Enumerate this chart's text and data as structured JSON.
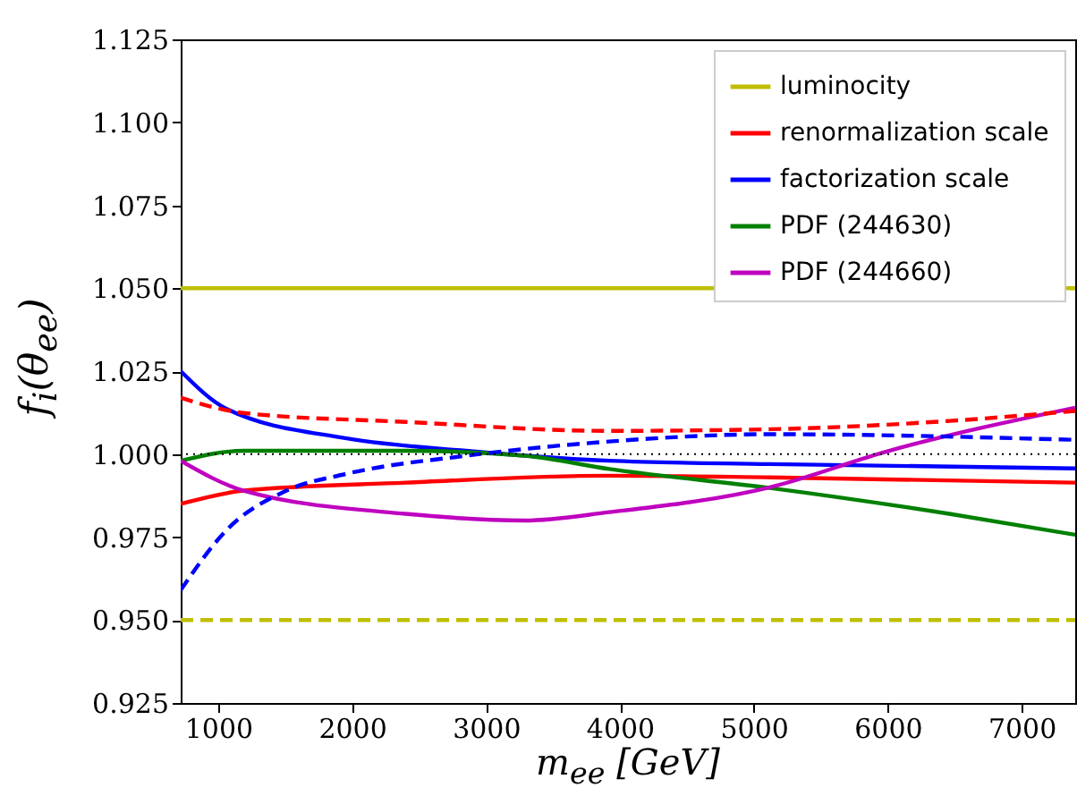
{
  "chart_data": {
    "type": "line",
    "xlabel": "m$_{ee}$ [GeV]",
    "ylabel": "f$_{i}$(θ$_{ee}$)",
    "xlim": [
      720,
      7400
    ],
    "ylim": [
      0.925,
      1.125
    ],
    "xticks": [
      1000,
      2000,
      3000,
      4000,
      5000,
      6000,
      7000
    ],
    "yticks": [
      {
        "value": 0.925,
        "label": "0.925"
      },
      {
        "value": 0.95,
        "label": "0.950"
      },
      {
        "value": 0.975,
        "label": "0.975"
      },
      {
        "value": 1,
        "label": "1.000"
      },
      {
        "value": 1.025,
        "label": "1.025"
      },
      {
        "value": 1.05,
        "label": "1.050"
      },
      {
        "value": 1.075,
        "label": "1.075"
      },
      {
        "value": 1.1,
        "label": "1.100"
      },
      {
        "value": 1.125,
        "label": "1.125"
      }
    ],
    "legend": "top right",
    "grid": false,
    "series": [
      {
        "name": "luminocity",
        "color": "#bfbf00",
        "line_style": "solid",
        "x": [
          720,
          7400
        ],
        "values": [
          1.05,
          1.05
        ]
      },
      {
        "name": "renormalization scale",
        "color": "#ff0000",
        "line_style": "solid",
        "x": [
          720,
          1190,
          2400,
          3920,
          5120,
          7400
        ],
        "values": [
          0.985,
          0.989,
          0.9914,
          0.9935,
          0.993,
          0.9914
        ]
      },
      {
        "name": "factorization scale",
        "color": "#0000ff",
        "line_style": "solid",
        "x": [
          720,
          1060,
          1950,
          2850,
          3920,
          5120,
          7400
        ],
        "values": [
          1.025,
          1.0137,
          1.0048,
          1.001,
          0.998,
          0.997,
          0.9957
        ]
      },
      {
        "name": "PDF (244630)",
        "color": "#008000",
        "line_style": "solid",
        "x": [
          720,
          1190,
          2400,
          3290,
          3920,
          5120,
          6460,
          7400
        ],
        "values": [
          0.998,
          1.001,
          1.001,
          0.9995,
          0.9955,
          0.9898,
          0.982,
          0.9757
        ]
      },
      {
        "name": "PDF (244660)",
        "color": "#bf00bf",
        "line_style": "solid",
        "x": [
          720,
          1190,
          2400,
          3290,
          3920,
          5120,
          6010,
          7400
        ],
        "values": [
          0.998,
          0.989,
          0.982,
          0.98,
          0.9825,
          0.99,
          1.001,
          1.014
        ]
      },
      {
        "color": "#bfbf00",
        "line_style": "dashed",
        "x": [
          720,
          7400
        ],
        "values": [
          0.95,
          0.95
        ]
      },
      {
        "color": "#ff0000",
        "line_style": "dashed",
        "x": [
          720,
          1190,
          2400,
          3920,
          5120,
          6460,
          7400
        ],
        "values": [
          1.017,
          1.0124,
          1.0097,
          1.007,
          1.0075,
          1.01,
          1.013
        ]
      },
      {
        "color": "#0000ff",
        "line_style": "dashed",
        "x": [
          720,
          1060,
          1510,
          1950,
          2850,
          3920,
          5120,
          7400
        ],
        "values": [
          0.959,
          0.977,
          0.989,
          0.994,
          0.9995,
          1.0038,
          1.006,
          1.0043
        ]
      }
    ],
    "ref_lines": [
      {
        "axis": "y",
        "value": 1,
        "color": "#000000",
        "line_style": "dotted"
      }
    ]
  }
}
